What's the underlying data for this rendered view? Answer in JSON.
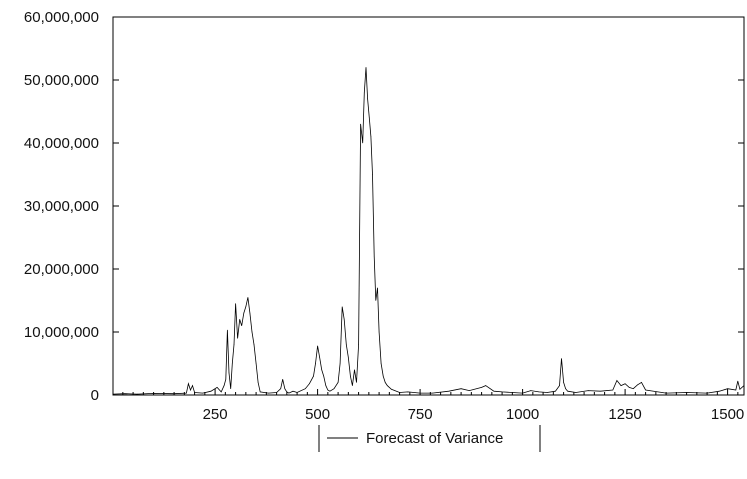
{
  "chart_data": {
    "type": "line",
    "title": "",
    "xlabel": "",
    "ylabel": "",
    "xlim": [
      1,
      1540
    ],
    "ylim": [
      0,
      60000000
    ],
    "x_ticks": [
      250,
      500,
      750,
      1000,
      1250,
      1500
    ],
    "x_tick_labels": [
      "250",
      "500",
      "750",
      "1000",
      "1250",
      "1500"
    ],
    "y_ticks": [
      0,
      10000000,
      20000000,
      30000000,
      40000000,
      50000000,
      60000000
    ],
    "y_tick_labels": [
      "0",
      "10,000,000",
      "20,000,000",
      "30,000,000",
      "40,000,000",
      "50,000,000",
      "60,000,000"
    ],
    "grid": false,
    "legend_position": "bottom-center",
    "series": [
      {
        "name": "Forecast of Variance",
        "color": "#000000",
        "x": [
          1,
          30,
          60,
          100,
          150,
          180,
          185,
          190,
          195,
          200,
          220,
          240,
          255,
          265,
          272,
          276,
          280,
          284,
          288,
          292,
          296,
          300,
          305,
          310,
          315,
          320,
          325,
          330,
          335,
          340,
          345,
          350,
          355,
          360,
          380,
          400,
          410,
          415,
          420,
          425,
          430,
          440,
          450,
          470,
          480,
          490,
          495,
          500,
          505,
          510,
          515,
          520,
          525,
          530,
          540,
          550,
          555,
          560,
          565,
          570,
          575,
          580,
          585,
          590,
          595,
          600,
          605,
          610,
          614,
          618,
          622,
          626,
          630,
          634,
          638,
          642,
          646,
          650,
          655,
          660,
          665,
          670,
          680,
          700,
          720,
          750,
          780,
          820,
          850,
          870,
          900,
          910,
          930,
          950,
          1000,
          1020,
          1040,
          1060,
          1080,
          1090,
          1095,
          1100,
          1105,
          1110,
          1130,
          1160,
          1190,
          1220,
          1230,
          1240,
          1250,
          1260,
          1270,
          1280,
          1290,
          1300,
          1350,
          1400,
          1450,
          1480,
          1500,
          1520,
          1525,
          1530,
          1540
        ],
        "values": [
          150000,
          200000,
          150000,
          250000,
          200000,
          300000,
          1800000,
          800000,
          1500000,
          400000,
          300000,
          600000,
          1200000,
          500000,
          1500000,
          2500000,
          10300000,
          3500000,
          1000000,
          5000000,
          8000000,
          14500000,
          9000000,
          12000000,
          11000000,
          13000000,
          14000000,
          15500000,
          13000000,
          10000000,
          8000000,
          5000000,
          2000000,
          500000,
          300000,
          400000,
          1000000,
          2500000,
          1000000,
          500000,
          300000,
          600000,
          400000,
          1000000,
          1800000,
          3000000,
          5000000,
          7800000,
          6000000,
          4000000,
          3000000,
          1500000,
          800000,
          600000,
          1000000,
          2000000,
          5000000,
          14000000,
          12000000,
          8000000,
          6000000,
          3000000,
          1500000,
          4000000,
          2000000,
          8000000,
          43000000,
          40000000,
          48000000,
          52000000,
          47000000,
          44000000,
          41000000,
          35000000,
          22000000,
          15000000,
          17000000,
          10000000,
          5000000,
          3000000,
          2000000,
          1500000,
          900000,
          400000,
          500000,
          300000,
          300000,
          600000,
          1000000,
          700000,
          1200000,
          1500000,
          600000,
          500000,
          300000,
          700000,
          500000,
          400000,
          600000,
          1500000,
          5800000,
          2000000,
          1000000,
          600000,
          400000,
          700000,
          600000,
          800000,
          2300000,
          1500000,
          1800000,
          1200000,
          1000000,
          1600000,
          2000000,
          800000,
          300000,
          400000,
          300000,
          600000,
          1000000,
          800000,
          2200000,
          900000,
          1500000
        ]
      }
    ]
  }
}
